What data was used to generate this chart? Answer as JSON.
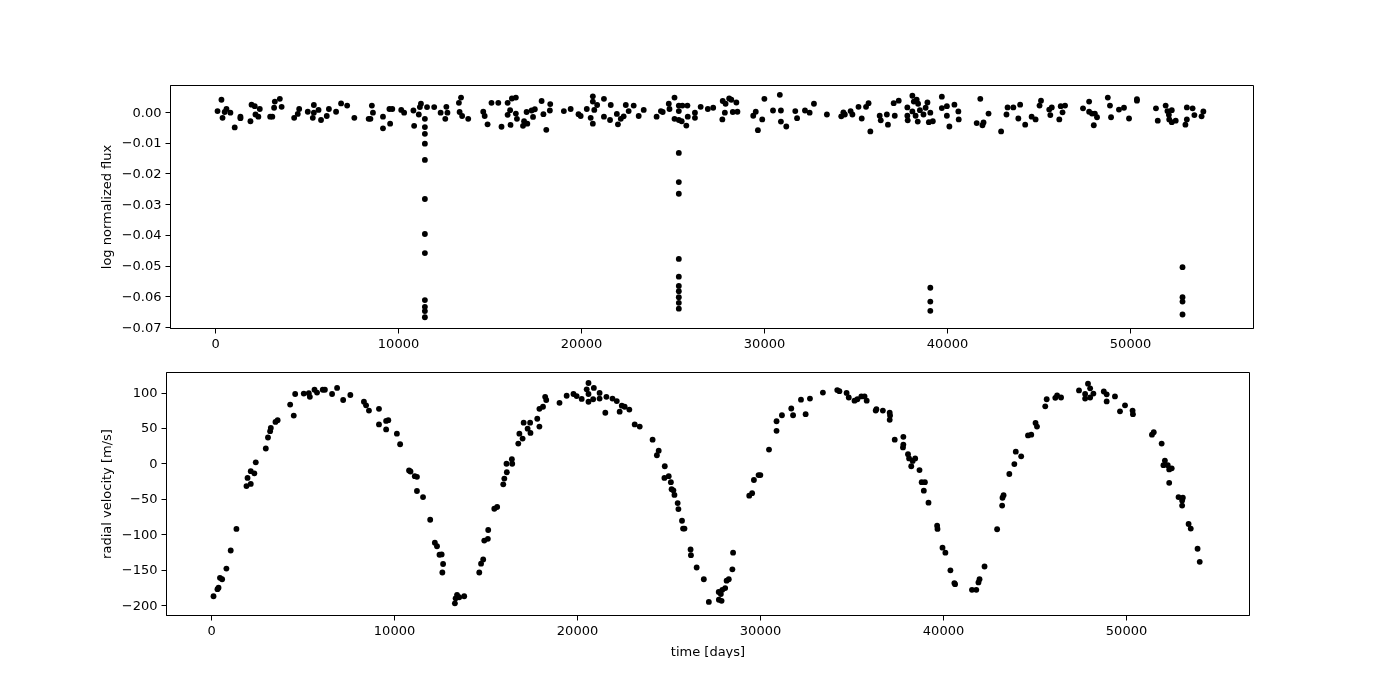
{
  "chart_data": [
    {
      "type": "scatter",
      "ylabel": "log normalized flux",
      "color": "#000000",
      "marker": "circle",
      "xlim": [
        -2460,
        56720
      ],
      "xticks": [
        0,
        10000,
        20000,
        30000,
        40000,
        50000
      ],
      "ylim": [
        -0.0703,
        0.0088
      ],
      "yticks": [
        {
          "value": -0.07,
          "label": "−0.07"
        },
        {
          "value": -0.06,
          "label": "−0.06"
        },
        {
          "value": -0.05,
          "label": "−0.05"
        },
        {
          "value": -0.04,
          "label": "−0.04"
        },
        {
          "value": -0.03,
          "label": "−0.03"
        },
        {
          "value": -0.02,
          "label": "−0.02"
        },
        {
          "value": -0.01,
          "label": "−0.01"
        },
        {
          "value": 0,
          "label": "0.00"
        }
      ],
      "x": [
        137,
        352,
        411,
        528,
        626,
        841,
        1076,
        1389,
        1389,
        1937,
        1996,
        2172,
        2211,
        2368,
        2446,
        3014,
        3131,
        3229,
        3268,
        3542,
        3640,
        4325,
        4521,
        4599,
        5069,
        5343,
        5401,
        5401,
        5656,
        5793,
        6106,
        6223,
        6615,
        6889,
        7221,
        7613,
        8396,
        8493,
        8571,
        8630,
        9178,
        9178,
        9569,
        9530,
        9687,
        10176,
        10333,
        10842,
        10881,
        11136,
        11194,
        11253,
        11468,
        11585,
        11977,
        12329,
        12583,
        12642,
        12701,
        13327,
        13444,
        13366,
        13503,
        13836,
        14658,
        14736,
        14893,
        15108,
        15480,
        15656,
        15989,
        15989,
        16126,
        16146,
        16224,
        16439,
        16439,
        16498,
        16830,
        16889,
        17065,
        17026,
        17300,
        17378,
        17476,
        17847,
        17945,
        18102,
        18298,
        18318,
        19062,
        19434,
        19864,
        19981,
        20315,
        20528,
        20646,
        20646,
        20646,
        20724,
        20881,
        21253,
        21253,
        21586,
        21625,
        21958,
        22017,
        22173,
        22330,
        22447,
        22604,
        22878,
        23152,
        23426,
        24130,
        24365,
        24463,
        24796,
        24835,
        25109,
        25109,
        25344,
        25344,
        25344,
        25500,
        25540,
        25755,
        25814,
        25833,
        26225,
        26225,
        26538,
        26929,
        27223,
        27743,
        27723,
        27860,
        27900,
        28096,
        28214,
        28293,
        28489,
        28547,
        29411,
        29549,
        29666,
        29902,
        30020,
        30491,
        30864,
        30923,
        30923,
        31217,
        31708,
        31806,
        32238,
        32493,
        32729,
        33436,
        34221,
        34338,
        34417,
        34731,
        34829,
        35163,
        35339,
        35575,
        35712,
        35810,
        36321,
        36380,
        36713,
        36772,
        37086,
        37145,
        37361,
        37832,
        37832,
        37852,
        38107,
        38107,
        38185,
        38342,
        38283,
        38420,
        38518,
        38400,
        38714,
        38832,
        38930,
        39008,
        39087,
        39224,
        39717,
        39717,
        39992,
        39992,
        40129,
        40404,
        40620,
        40640,
        41621,
        41818,
        41936,
        41995,
        42269,
        42956,
        43250,
        43309,
        43623,
        43898,
        43996,
        44271,
        44624,
        44840,
        45056,
        45135,
        45586,
        45645,
        45724,
        46136,
        46214,
        46312,
        46450,
        47431,
        47765,
        47765,
        47922,
        48079,
        48020,
        48197,
        48786,
        48904,
        48963,
        49395,
        49670,
        49945,
        50377,
        50377,
        51417,
        51515,
        51947,
        52045,
        52124,
        52281,
        52143,
        52281,
        52497,
        53027,
        53105,
        53105,
        53419,
        53517,
        53910,
        54008,
        11468,
        11468,
        11468,
        11468,
        11468,
        11468,
        11468,
        11468,
        11468,
        11468,
        11468,
        25344,
        25344,
        25344,
        25344,
        25344,
        25344,
        25344,
        25344,
        25344,
        25344,
        39087,
        39087,
        39087,
        52869,
        52869,
        52869,
        52869
      ],
      "values": [
        0.0003,
        0.004,
        -0.0019,
        0,
        0.001,
        -0.0002,
        -0.005,
        -0.0015,
        -0.002,
        -0.003,
        0.0024,
        0.0019,
        -0.0008,
        -0.0015,
        0.001,
        -0.0015,
        -0.0015,
        0.0014,
        0.0034,
        0.0043,
        0.0017,
        -0.0019,
        -0.0006,
        0.001,
        0.0001,
        -0.0019,
        0.0023,
        -0.0002,
        0.0007,
        -0.0026,
        -0.0013,
        0.001,
        0.0001,
        0.0028,
        0.0021,
        -0.0019,
        -0.0022,
        -0.0022,
        0.0021,
        -0.0002,
        -0.0015,
        -0.0053,
        -0.0038,
        0.001,
        0.001,
        0.0007,
        -0.0002,
        0.0005,
        -0.0045,
        -0.0008,
        0.0016,
        0.0027,
        -0.0022,
        0.0016,
        0.0016,
        -0.0002,
        -0.0022,
        0.0017,
        -0.0002,
        0.003,
        0.0047,
        0,
        -0.0013,
        -0.0022,
        0.0001,
        -0.0013,
        -0.004,
        0.003,
        0.003,
        -0.0048,
        0.003,
        -0.0009,
        0.0006,
        -0.0042,
        0.0044,
        0.0047,
        -0.0005,
        -0.0022,
        -0.0045,
        -0.003,
        -0.0038,
        0,
        0.0005,
        -0.0016,
        0.0009,
        0.0036,
        -0.0007,
        -0.0058,
        0.0005,
        0.0026,
        0.0003,
        0.001,
        -0.0007,
        -0.0013,
        0.001,
        -0.0019,
        0.0051,
        0.0034,
        -0.0038,
        0.0007,
        0.0023,
        0.0043,
        -0.0015,
        -0.0026,
        0.0023,
        -0.0006,
        -0.004,
        -0.0022,
        -0.0014,
        0.0023,
        0.0003,
        0.0021,
        -0.0013,
        0.0007,
        -0.0015,
        0.0003,
        0,
        0.0027,
        0.001,
        0.0047,
        -0.0022,
        -0.0026,
        0.0003,
        0.0021,
        -0.003,
        0.0021,
        -0.0044,
        0.0021,
        -0.0015,
        -0.0019,
        -0.0002,
        0.0017,
        0.001,
        0.0014,
        0.0036,
        -0.0024,
        -0.0002,
        0.0027,
        0.0044,
        0.004,
        0,
        0.0031,
        0.0001,
        -0.0012,
        0.0001,
        -0.0059,
        -0.0024,
        0.0043,
        0.0005,
        0.0056,
        0.0005,
        -0.0031,
        -0.0047,
        0.0003,
        -0.002,
        0.0005,
        -0.0002,
        0.0027,
        -0.0008,
        -0.0014,
        -0.0001,
        -0.0008,
        0.0003,
        -0.0008,
        0.0017,
        -0.0021,
        0.0017,
        0.0029,
        -0.0063,
        -0.0012,
        -0.0027,
        -0.0008,
        -0.0041,
        0.0029,
        -0.0012,
        0.0037,
        0.0015,
        -0.0012,
        -0.0027,
        0.0053,
        0.0002,
        0.0034,
        0.004,
        -0.0012,
        0.0027,
        0.0006,
        -0.0031,
        -0.0008,
        0.0014,
        0.0031,
        -0.0033,
        -0.0002,
        -0.003,
        0.005,
        0.0013,
        -0.0012,
        0.0019,
        -0.0047,
        0.0024,
        0.0002,
        -0.0024,
        -0.0036,
        0.0043,
        -0.0043,
        -0.0034,
        -0.0005,
        -0.0063,
        -0.0008,
        0.0015,
        0.0015,
        -0.0021,
        0.0024,
        -0.0041,
        -0.0015,
        -0.0024,
        0.0021,
        0.0037,
        0.0008,
        -0.001,
        0.0015,
        -0.0024,
        0.0019,
        -0.0001,
        0.0021,
        0.0012,
        0.0034,
        0.0001,
        -0.0005,
        -0.0005,
        -0.0043,
        -0.0017,
        0.0047,
        0.0021,
        -0.0017,
        0.0008,
        0.0014,
        -0.0021,
        0.0037,
        0.0042,
        0.0012,
        -0.0028,
        0.0021,
        0.0003,
        -0.0009,
        0.0006,
        -0.0024,
        -0.0033,
        -0.0028,
        -0.0041,
        0.0015,
        -0.0024,
        0.0012,
        -0.001,
        -0.0014,
        0.0002,
        -0.0049,
        -0.0071,
        -0.0103,
        -0.0156,
        -0.0283,
        -0.0397,
        -0.0459,
        -0.0612,
        -0.0634,
        -0.0648,
        -0.0668,
        -0.0133,
        -0.0228,
        -0.0266,
        -0.0478,
        -0.0536,
        -0.0566,
        -0.0583,
        -0.0603,
        -0.0621,
        -0.064,
        -0.0572,
        -0.0617,
        -0.0647,
        -0.0505,
        -0.0603,
        -0.0617,
        -0.0659
      ]
    },
    {
      "type": "scatter",
      "xlabel": "time [days]",
      "ylabel": "radial velocity [m/s]",
      "color": "#000000",
      "marker": "circle",
      "xlim": [
        -2460,
        56720
      ],
      "xticks": [
        0,
        10000,
        20000,
        30000,
        40000,
        50000
      ],
      "ylim": [
        -214,
        129
      ],
      "yticks": [
        {
          "value": -200,
          "label": "−200"
        },
        {
          "value": -150,
          "label": "−150"
        },
        {
          "value": -100,
          "label": "−100"
        },
        {
          "value": -50,
          "label": "−50"
        },
        0,
        50,
        100
      ],
      "x": [
        137,
        352,
        411,
        489,
        607,
        841,
        1076,
        1389,
        1937,
        1996,
        2172,
        2172,
        2368,
        2446,
        2994,
        3112,
        3229,
        3268,
        3522,
        3640,
        4325,
        4521,
        4599,
        5069,
        5343,
        5401,
        5656,
        5793,
        6106,
        6223,
        6615,
        6889,
        7221,
        7613,
        8356,
        8474,
        8630,
        9178,
        9178,
        9569,
        9687,
        9569,
        10157,
        10333,
        10822,
        10900,
        11136,
        11253,
        11253,
        11585,
        11977,
        12231,
        12348,
        12485,
        12603,
        12681,
        12642,
        13327,
        13366,
        13444,
        13562,
        13836,
        14658,
        14756,
        14873,
        14932,
        15128,
        15147,
        15480,
        15636,
        15969,
        16028,
        16165,
        16146,
        16439,
        16459,
        16791,
        16850,
        17026,
        17084,
        17300,
        17437,
        17456,
        17828,
        17945,
        17945,
        18141,
        18259,
        18318,
        19043,
        19434,
        19806,
        19981,
        20255,
        20529,
        20627,
        20627,
        20627,
        20881,
        20920,
        21233,
        21233,
        21546,
        21605,
        21938,
        22173,
        22330,
        22447,
        22604,
        22858,
        23152,
        23426,
        24130,
        24365,
        24463,
        24796,
        24776,
        25011,
        25128,
        25168,
        25265,
        25324,
        25500,
        25540,
        25736,
        25794,
        25872,
        26205,
        26225,
        26538,
        26929,
        27203,
        27751,
        27743,
        27860,
        27900,
        27939,
        28096,
        28174,
        28293,
        28489,
        28528,
        29411,
        29568,
        29666,
        29921,
        30020,
        30491,
        30903,
        30903,
        31197,
        31806,
        31708,
        32238,
        32493,
        32729,
        33436,
        34221,
        34338,
        34731,
        34849,
        35163,
        35320,
        35536,
        35712,
        35830,
        36321,
        36360,
        36713,
        37086,
        37086,
        37106,
        37361,
        37832,
        37812,
        37832,
        38087,
        38146,
        38264,
        38342,
        38479,
        38715,
        38833,
        39010,
        38951,
        39206,
        39678,
        39698,
        39972,
        40129,
        40404,
        40620,
        40659,
        41582,
        41818,
        41936,
        41995,
        42269,
        42956,
        43231,
        43250,
        43309,
        43623,
        43898,
        43976,
        44271,
        44644,
        44821,
        45056,
        45135,
        45586,
        45665,
        46136,
        46234,
        46450,
        47431,
        47765,
        47765,
        47922,
        48040,
        48040,
        48217,
        48786,
        48943,
        48943,
        49395,
        49670,
        49945,
        50358,
        50377,
        51417,
        51515,
        51947,
        52045,
        52124,
        52281,
        52359,
        52359,
        52497,
        52869,
        53105,
        53066,
        53066,
        53419,
        53537,
        53910,
        54028
      ],
      "values": [
        -187.5,
        -177.5,
        -175.5,
        -161.5,
        -163.5,
        -148.5,
        -123,
        -92.5,
        -32,
        -20.5,
        -11,
        -29,
        -14,
        1.5,
        21,
        36.5,
        45.5,
        50,
        58.5,
        61,
        83,
        67.5,
        98,
        98.5,
        99,
        94,
        104,
        100,
        104,
        104,
        98,
        106.5,
        89.5,
        96.5,
        87,
        82,
        74.5,
        77,
        55,
        60,
        61,
        48,
        42,
        27,
        -10,
        -11.5,
        -18,
        -19,
        -39,
        -47.5,
        -79.5,
        -112,
        -117,
        -129,
        -128.5,
        -142,
        -154,
        -197.5,
        -190.5,
        -185.5,
        -189,
        -187.5,
        -154,
        -141.5,
        -135.5,
        -109,
        -106.5,
        -94,
        -64,
        -61.5,
        -29.5,
        -21.5,
        -12.5,
        -0.5,
        6,
        -0.5,
        28,
        42,
        35,
        57.5,
        49,
        57.5,
        43,
        63,
        52,
        77,
        80,
        94,
        89.5,
        85.5,
        95.5,
        98,
        95,
        91,
        104.5,
        113.5,
        98,
        87,
        90.5,
        106.5,
        91.5,
        99.5,
        71.5,
        94,
        91.5,
        88,
        73,
        81.5,
        80,
        76,
        55,
        52,
        33.5,
        11.5,
        18,
        -4,
        -20.5,
        -18,
        -26.5,
        -36.5,
        -38,
        -44.5,
        -56,
        -64.5,
        -81,
        -92,
        -92,
        -121.5,
        -129.5,
        -147,
        -163.5,
        -195.5,
        -192.5,
        -181.5,
        -184.5,
        -194,
        -178.5,
        -176,
        -165.5,
        -163.5,
        -149.5,
        -126,
        -45.5,
        -42,
        -23.5,
        -16.5,
        -16.5,
        19.5,
        46,
        59.5,
        68,
        68,
        77.5,
        90,
        69.5,
        91.5,
        100,
        103.5,
        102,
        99.5,
        93,
        88.5,
        90.5,
        94.5,
        94.5,
        88.5,
        74.5,
        76.5,
        74.5,
        71.5,
        61.5,
        67.5,
        33.5,
        37.5,
        22.5,
        26.5,
        13,
        7,
        -4,
        3.5,
        7,
        -9.5,
        -26.5,
        -26.5,
        -38.5,
        -55.5,
        -88,
        -92.5,
        -119,
        -126,
        -151,
        -169,
        -170.5,
        -178.5,
        -178.5,
        -168,
        -163.5,
        -145.5,
        -93,
        -59.5,
        -48.5,
        -45,
        -15,
        -1,
        16.5,
        10,
        39.5,
        40.5,
        57,
        52,
        80.5,
        90.5,
        92.5,
        96,
        93,
        103,
        98,
        91.5,
        112.5,
        106,
        93,
        98.5,
        101.5,
        87.5,
        97.5,
        94.5,
        73.5,
        82,
        74.5,
        69.5,
        40.5,
        44,
        28,
        -2.5,
        4,
        -2.5,
        -8.5,
        -27.5,
        -7,
        -47.5,
        -48.5,
        -59.5,
        -52.5,
        -85.5,
        -92,
        -120.5,
        -139
      ]
    }
  ]
}
